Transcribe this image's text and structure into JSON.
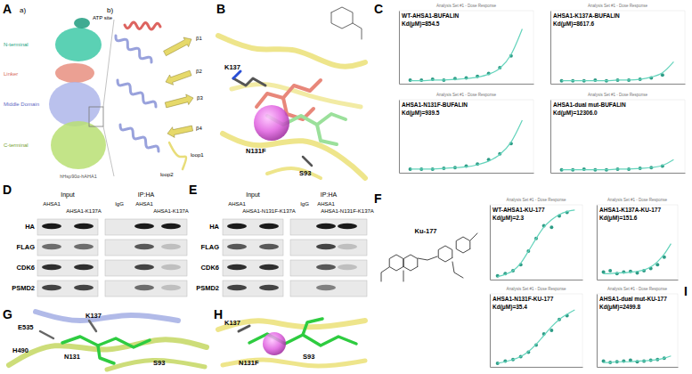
{
  "panel_A": {
    "label": "A",
    "sub_a": "a)",
    "sub_b": "b)",
    "domains": [
      "ATP site",
      "N-terminal",
      "Linker",
      "Middle Domain",
      "C-terminal"
    ],
    "complex": "hHsp90α-hAHA1",
    "zoom_labels": [
      "β1",
      "β2",
      "β3",
      "β4",
      "loop1",
      "loop2"
    ]
  },
  "panel_B": {
    "label": "B",
    "residues": [
      "K137",
      "N131F",
      "S93"
    ]
  },
  "panel_C": {
    "label": "C"
  },
  "panel_D": {
    "label": "D",
    "groups": [
      "Input",
      "IP:HA"
    ],
    "lanes": [
      "AHSA1",
      "AHSA1-K137A",
      "IgG",
      "AHSA1",
      "AHSA1-K137A"
    ],
    "rows": [
      "HA",
      "FLAG",
      "CDK6",
      "PSMD2"
    ],
    "bands": [
      [
        1,
        1,
        0,
        1,
        1
      ],
      [
        0.6,
        0.6,
        0,
        0.7,
        0.2
      ],
      [
        0.9,
        0.9,
        0,
        0.8,
        0.2
      ],
      [
        0.8,
        0.8,
        0,
        0.6,
        0.2
      ]
    ]
  },
  "panel_E": {
    "label": "E",
    "groups": [
      "Input",
      "IP:HA"
    ],
    "lanes": [
      "AHSA1",
      "AHSA1-N131F-K137A",
      "IgG",
      "AHSA1",
      "AHSA1-N131F-K137A"
    ],
    "rows": [
      "HA",
      "FLAG",
      "CDK6",
      "PSMD2"
    ],
    "bands": [
      [
        1,
        1,
        0,
        1,
        1
      ],
      [
        0.7,
        0.7,
        0,
        0.8,
        0.2
      ],
      [
        0.9,
        0.9,
        0,
        0.7,
        0.2
      ],
      [
        0.8,
        0.8,
        0,
        0.5,
        0
      ]
    ]
  },
  "panel_F": {
    "label": "F",
    "compound": "Ku-177"
  },
  "panel_G": {
    "label": "G",
    "residues": [
      "E535",
      "K137",
      "H490",
      "N131",
      "S93"
    ]
  },
  "panel_H": {
    "label": "H",
    "residues": [
      "K137",
      "N131F",
      "S93"
    ]
  },
  "panel_I": {
    "label": "I"
  },
  "chart_data": [
    {
      "type": "scatter",
      "title": "Analysis Set #1 - Dose Response",
      "subtitle": "WT-AHSA1-BUFALIN",
      "annotation": "Kd(μM)=854.5",
      "x": [
        1,
        2,
        3,
        4,
        5,
        6,
        7,
        8,
        9,
        10,
        11
      ],
      "xlim": [
        0,
        12
      ],
      "ylim": [
        0,
        100
      ],
      "tick_labels": false,
      "series": [
        {
          "type": "scatter",
          "color": "#2e9c86",
          "values": [
            5,
            5,
            6,
            5,
            7,
            8,
            10,
            14,
            22,
            38,
            null
          ]
        },
        {
          "type": "line",
          "color": "#63d3bb",
          "values": [
            4,
            4,
            5,
            5,
            6,
            7,
            9,
            13,
            21,
            40,
            75
          ]
        }
      ]
    },
    {
      "type": "scatter",
      "title": "Analysis Set #1 - Dose Response",
      "subtitle": "AHSA1-K137A-BUFALIN",
      "annotation": "Kd(μM)=8617.6",
      "x": [
        1,
        2,
        3,
        4,
        5,
        6,
        7,
        8,
        9,
        10,
        11
      ],
      "xlim": [
        0,
        12
      ],
      "ylim": [
        0,
        100
      ],
      "tick_labels": false,
      "series": [
        {
          "type": "scatter",
          "color": "#2e9c86",
          "values": [
            4,
            4,
            4,
            5,
            4,
            5,
            5,
            6,
            8,
            12,
            null
          ]
        },
        {
          "type": "line",
          "color": "#63d3bb",
          "values": [
            4,
            4,
            4,
            4,
            4,
            5,
            5,
            6,
            9,
            15,
            30
          ]
        }
      ]
    },
    {
      "type": "scatter",
      "title": "Analysis Set #1 - Dose Response",
      "subtitle": "AHSA1-N131F-BUFALIN",
      "annotation": "Kd(μM)=939.5",
      "x": [
        1,
        2,
        3,
        4,
        5,
        6,
        7,
        8,
        9,
        10,
        11
      ],
      "xlim": [
        0,
        12
      ],
      "ylim": [
        0,
        100
      ],
      "tick_labels": false,
      "series": [
        {
          "type": "scatter",
          "color": "#2e9c86",
          "values": [
            5,
            5,
            5,
            6,
            7,
            9,
            12,
            18,
            26,
            40,
            null
          ]
        },
        {
          "type": "line",
          "color": "#63d3bb",
          "values": [
            5,
            5,
            5,
            6,
            7,
            8,
            11,
            16,
            25,
            42,
            72
          ]
        }
      ]
    },
    {
      "type": "scatter",
      "title": "Analysis Set #1 - Dose Response",
      "subtitle": "AHSA1-dual mut-BUFALIN",
      "annotation": "Kd(μM)=12306.0",
      "x": [
        1,
        2,
        3,
        4,
        5,
        6,
        7,
        8,
        9,
        10,
        11
      ],
      "xlim": [
        0,
        12
      ],
      "ylim": [
        0,
        100
      ],
      "tick_labels": false,
      "series": [
        {
          "type": "scatter",
          "color": "#2e9c86",
          "values": [
            4,
            4,
            5,
            4,
            4,
            5,
            5,
            6,
            7,
            9,
            null
          ]
        },
        {
          "type": "line",
          "color": "#63d3bb",
          "values": [
            4,
            4,
            4,
            4,
            4,
            5,
            5,
            6,
            7,
            10,
            18
          ]
        }
      ]
    },
    {
      "type": "scatter",
      "title": "Analysis Set #1 - Dose Response",
      "subtitle": "WT-AHSA1-KU-177",
      "annotation": "Kd(μM)=2.3",
      "x": [
        1,
        2,
        3,
        4,
        5,
        6,
        7,
        8,
        9,
        10,
        11
      ],
      "xlim": [
        0,
        12
      ],
      "ylim": [
        0,
        100
      ],
      "tick_labels": false,
      "series": [
        {
          "type": "scatter",
          "color": "#2e9c86",
          "values": [
            5,
            8,
            12,
            20,
            38,
            55,
            72,
            70,
            85,
            90,
            null
          ]
        },
        {
          "type": "line",
          "color": "#63d3bb",
          "values": [
            4,
            7,
            12,
            22,
            38,
            55,
            70,
            80,
            87,
            91,
            93
          ]
        }
      ]
    },
    {
      "type": "scatter",
      "title": "Analysis Set #1 - Dose Response",
      "subtitle": "AHSA1-K137A-KU-177",
      "annotation": "Kd(μM)=151.6",
      "x": [
        1,
        2,
        3,
        4,
        5,
        6,
        7,
        8,
        9,
        10,
        11
      ],
      "xlim": [
        0,
        12
      ],
      "ylim": [
        0,
        100
      ],
      "tick_labels": false,
      "series": [
        {
          "type": "scatter",
          "color": "#2e9c86",
          "values": [
            10,
            12,
            8,
            10,
            11,
            9,
            12,
            15,
            20,
            30,
            null
          ]
        },
        {
          "type": "line",
          "color": "#63d3bb",
          "values": [
            8,
            8,
            9,
            9,
            10,
            11,
            13,
            17,
            24,
            34,
            48
          ]
        }
      ]
    },
    {
      "type": "scatter",
      "title": "Analysis Set #1 - Dose Response",
      "subtitle": "AHSA1-N131F-KU-177",
      "annotation": "Kd(μM)=35.4",
      "x": [
        1,
        2,
        3,
        4,
        5,
        6,
        7,
        8,
        9,
        10,
        11
      ],
      "xlim": [
        0,
        12
      ],
      "ylim": [
        0,
        100
      ],
      "tick_labels": false,
      "series": [
        {
          "type": "scatter",
          "color": "#2e9c86",
          "values": [
            5,
            8,
            10,
            14,
            20,
            30,
            45,
            50,
            65,
            70,
            null
          ]
        },
        {
          "type": "line",
          "color": "#63d3bb",
          "values": [
            5,
            7,
            10,
            14,
            21,
            31,
            43,
            55,
            65,
            72,
            78
          ]
        }
      ]
    },
    {
      "type": "scatter",
      "title": "Analysis Set #1 - Dose Response",
      "subtitle": "AHSA1-dual mut-KU-177",
      "annotation": "Kd(μM)=2499.8",
      "x": [
        1,
        2,
        3,
        4,
        5,
        6,
        7,
        8,
        9,
        10,
        11
      ],
      "xlim": [
        0,
        12
      ],
      "ylim": [
        0,
        100
      ],
      "tick_labels": false,
      "series": [
        {
          "type": "scatter",
          "color": "#2e9c86",
          "values": [
            8,
            6,
            7,
            8,
            9,
            7,
            8,
            9,
            10,
            12,
            null
          ]
        },
        {
          "type": "line",
          "color": "#63d3bb",
          "values": [
            6,
            6,
            7,
            7,
            7,
            8,
            8,
            9,
            10,
            12,
            15
          ]
        }
      ]
    }
  ]
}
